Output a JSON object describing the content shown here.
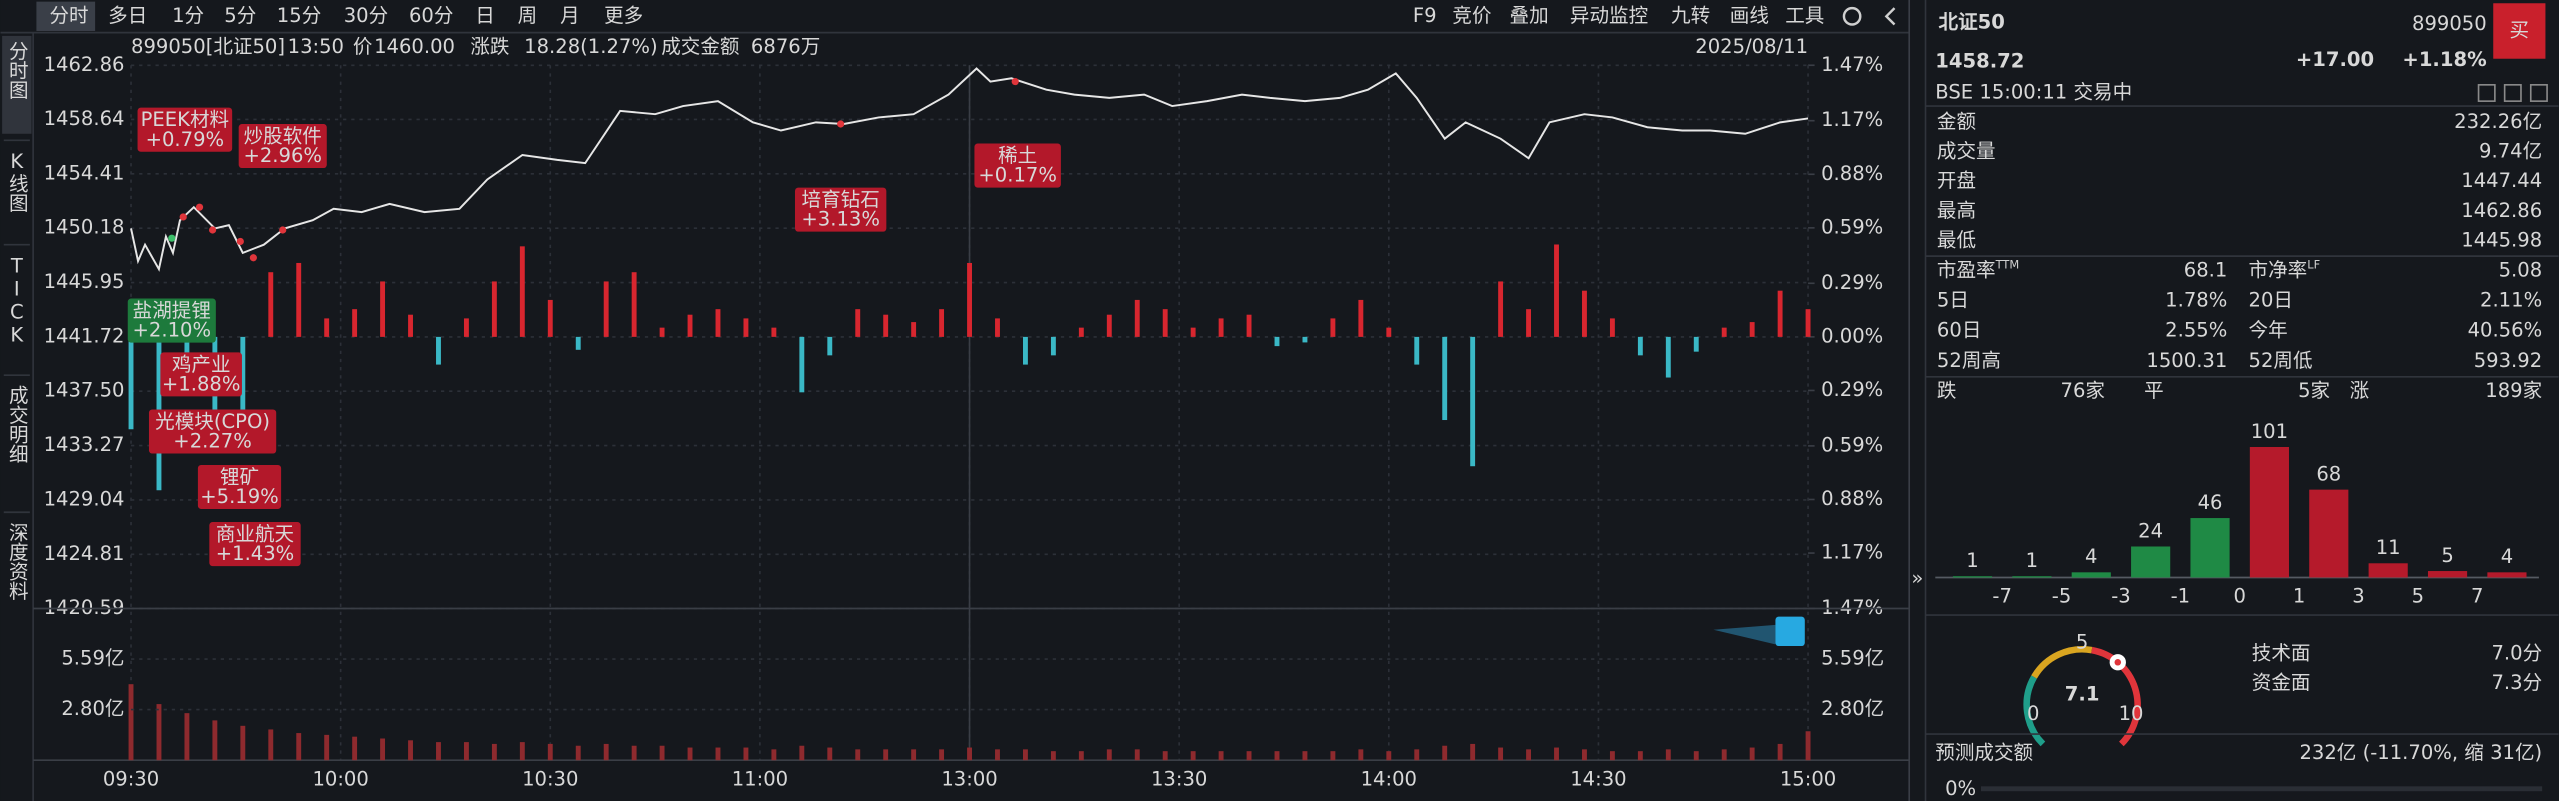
{
  "toolbar": {
    "periods": [
      "分时",
      "多日",
      "1分",
      "5分",
      "15分",
      "30分",
      "60分",
      "日",
      "周",
      "月",
      "更多"
    ],
    "tools": [
      "F9",
      "竞价",
      "叠加",
      "异动监控",
      "九转",
      "画线",
      "工具"
    ]
  },
  "side_tabs": [
    "分时图",
    "K线图",
    "TICK",
    "成交明细",
    "深度资料"
  ],
  "info_bar": {
    "code": "899050[北证50]",
    "time": "13:50",
    "price_label": "价",
    "price": "1460.00",
    "change_label": "涨跌",
    "change": "18.28(1.27%)",
    "amount_label": "成交金额",
    "amount": "6876万",
    "date": "2025/08/11"
  },
  "annotations": [
    {
      "name": "PEEK材料",
      "change": "+0.79%",
      "color": "#b3182a"
    },
    {
      "name": "炒股软件",
      "change": "+2.96%",
      "color": "#b3182a"
    },
    {
      "name": "盐湖提锂",
      "change": "+2.10%",
      "color": "#1d7a3c"
    },
    {
      "name": "鸡产业",
      "change": "+1.88%",
      "color": "#b3182a"
    },
    {
      "name": "光模块(CPO)",
      "change": "+2.27%",
      "color": "#b3182a"
    },
    {
      "name": "锂矿",
      "change": "+5.19%",
      "color": "#b3182a"
    },
    {
      "name": "商业航天",
      "change": "+1.43%",
      "color": "#b3182a"
    },
    {
      "name": "培育钻石",
      "change": "+3.13%",
      "color": "#b3182a"
    },
    {
      "name": "稀土",
      "change": "+0.17%",
      "color": "#b3182a"
    }
  ],
  "chart_data": [
    {
      "type": "line",
      "color": "#e6e6e6",
      "grid": true,
      "x": [
        0,
        1,
        2,
        4,
        5,
        6,
        7,
        9,
        12,
        14,
        16,
        19,
        22,
        26,
        29,
        33,
        37,
        42,
        47,
        51,
        56,
        61,
        65,
        70,
        75,
        79,
        84,
        89,
        93,
        98,
        102,
        107,
        112,
        117,
        121,
        123,
        126,
        131,
        135,
        140,
        145,
        149,
        154,
        159,
        163,
        168,
        173,
        177,
        181,
        184,
        188,
        191,
        196,
        200,
        203,
        208,
        212,
        217,
        222,
        226,
        231,
        236,
        240
      ],
      "values": [
        1450.17,
        1447.63,
        1448.9,
        1446.99,
        1449.53,
        1448.26,
        1450.8,
        1451.82,
        1450.17,
        1450.42,
        1448.26,
        1448.9,
        1450.17,
        1450.8,
        1451.69,
        1451.44,
        1452.07,
        1451.44,
        1451.69,
        1453.97,
        1455.88,
        1455.5,
        1455.24,
        1459.31,
        1459.05,
        1459.69,
        1460.07,
        1458.42,
        1457.78,
        1458.42,
        1458.29,
        1458.8,
        1459.05,
        1460.57,
        1462.61,
        1461.59,
        1461.84,
        1460.96,
        1460.57,
        1460.32,
        1460.57,
        1459.69,
        1460.07,
        1460.57,
        1460.32,
        1460.07,
        1460.32,
        1460.96,
        1462.23,
        1460.32,
        1457.15,
        1458.42,
        1457.15,
        1455.62,
        1458.42,
        1459.05,
        1458.8,
        1458.04,
        1457.78,
        1457.78,
        1457.53,
        1458.42,
        1458.72
      ],
      "xlim": [
        0,
        240
      ],
      "xticks": [
        {
          "value": 0,
          "label": "09:30"
        },
        {
          "value": 30,
          "label": "10:00"
        },
        {
          "value": 60,
          "label": "10:30"
        },
        {
          "value": 90,
          "label": "11:00"
        },
        {
          "value": 120,
          "label": "13:00"
        },
        {
          "value": 150,
          "label": "13:30"
        },
        {
          "value": 180,
          "label": "14:00"
        },
        {
          "value": 210,
          "label": "14:30"
        },
        {
          "value": 240,
          "label": "15:00"
        }
      ],
      "ylim": [
        1420.59,
        1462.86
      ],
      "yticks": [
        1462.86,
        1458.64,
        1454.41,
        1450.18,
        1445.95,
        1441.72,
        {
          "value": 1437.5,
          "label": "1437.50"
        },
        1433.27,
        1429.04,
        1424.81,
        1420.59
      ],
      "y2lim": [
        -1.47,
        1.47
      ],
      "y2ticks": [
        {
          "value": 1.47,
          "label": "1.47%"
        },
        {
          "value": 1.17,
          "label": "1.17%"
        },
        {
          "value": 0.88,
          "label": "0.88%"
        },
        {
          "value": 0.59,
          "label": "0.59%"
        },
        {
          "value": 0.29,
          "label": "0.29%"
        },
        {
          "value": 0,
          "label": "0.00%"
        },
        {
          "value": -0.29,
          "label": "0.29%"
        },
        {
          "value": -0.59,
          "label": "0.59%"
        },
        {
          "value": -0.88,
          "label": "0.88%"
        },
        {
          "value": -1.17,
          "label": "1.17%"
        },
        {
          "value": -1.47,
          "label": "1.47%"
        }
      ],
      "up_color": "#e0353b",
      "down_color": "#2fb85c",
      "flat_color": "#e6e6e6"
    },
    {
      "type": "bar",
      "color_up": "#d8262f",
      "color_down": "#3ab8c6",
      "x": [
        0,
        4,
        8,
        12,
        16,
        20,
        24,
        28,
        32,
        36,
        40,
        44,
        48,
        52,
        56,
        60,
        64,
        68,
        72,
        76,
        80,
        84,
        88,
        92,
        96,
        100,
        104,
        108,
        112,
        116,
        120,
        124,
        128,
        132,
        136,
        140,
        144,
        148,
        152,
        156,
        160,
        164,
        168,
        172,
        176,
        180,
        184,
        188,
        192,
        196,
        200,
        204,
        208,
        212,
        216,
        220,
        224,
        228,
        232,
        236,
        240
      ],
      "values": [
        -0.5,
        -0.83,
        -0.3,
        -0.55,
        -0.4,
        0.35,
        0.4,
        0.1,
        0.15,
        0.3,
        0.12,
        -0.15,
        0.1,
        0.3,
        0.49,
        0.2,
        -0.07,
        0.3,
        0.35,
        0.05,
        0.12,
        0.15,
        0.1,
        0.05,
        -0.3,
        -0.1,
        0.15,
        0.12,
        0.08,
        0.15,
        0.4,
        0.1,
        -0.15,
        -0.1,
        0.05,
        0.12,
        0.2,
        0.15,
        0.05,
        0.1,
        0.12,
        -0.05,
        -0.03,
        0.1,
        0.2,
        0.05,
        -0.15,
        -0.45,
        -0.7,
        0.3,
        0.15,
        0.5,
        0.25,
        0.1,
        -0.1,
        -0.22,
        -0.08,
        0.05,
        0.08,
        0.25,
        0.15
      ],
      "xlim": [
        0,
        240
      ],
      "ylim": [
        -1.47,
        1.47
      ]
    },
    {
      "type": "bar",
      "color": "#8e2a2e",
      "x": [
        0,
        4,
        8,
        12,
        16,
        20,
        24,
        28,
        32,
        36,
        40,
        44,
        48,
        52,
        56,
        60,
        64,
        68,
        72,
        76,
        80,
        84,
        88,
        92,
        96,
        100,
        104,
        108,
        112,
        116,
        120,
        124,
        128,
        132,
        136,
        140,
        144,
        148,
        152,
        156,
        160,
        164,
        168,
        172,
        176,
        180,
        184,
        188,
        192,
        196,
        200,
        204,
        208,
        212,
        216,
        220,
        224,
        228,
        232,
        236,
        240
      ],
      "values": [
        4.2,
        3.1,
        2.6,
        2.2,
        1.9,
        1.7,
        1.5,
        1.4,
        1.3,
        1.2,
        1.1,
        1.0,
        1.0,
        0.9,
        1.0,
        0.9,
        0.8,
        0.9,
        0.8,
        0.8,
        0.7,
        0.7,
        0.7,
        0.6,
        0.8,
        0.7,
        0.6,
        0.6,
        0.6,
        0.6,
        0.7,
        0.6,
        0.6,
        0.5,
        0.5,
        0.6,
        0.6,
        0.5,
        0.5,
        0.5,
        0.5,
        0.5,
        0.5,
        0.5,
        0.6,
        0.5,
        0.6,
        0.8,
        0.9,
        0.7,
        0.6,
        0.7,
        0.6,
        0.5,
        0.5,
        0.6,
        0.5,
        0.6,
        0.7,
        0.9,
        1.6
      ],
      "xlim": [
        0,
        240
      ],
      "ylim": [
        0,
        8.38
      ],
      "yticks": [
        {
          "value": 5.59,
          "label": "5.59亿"
        },
        {
          "value": 2.8,
          "label": "2.80亿"
        }
      ]
    },
    {
      "type": "histogram",
      "bins": [
        null,
        -7,
        -5,
        -3,
        -1,
        0,
        1,
        3,
        5,
        7,
        null
      ],
      "values": [
        1,
        1,
        4,
        24,
        46,
        101,
        68,
        11,
        5,
        4
      ],
      "colors": [
        "#1f8a45",
        "#1f8a45",
        "#1f8a45",
        "#1f8a45",
        "#1f8a45",
        "#b51a2b",
        "#b51a2b",
        "#b51a2b",
        "#b51a2b",
        "#b51a2b"
      ],
      "label_colors": [
        "#3cc06a",
        "#3cc06a",
        "#3cc06a",
        "#3cc06a",
        "#3cc06a",
        "#e0353b",
        "#e0353b",
        "#e0353b",
        "#e0353b",
        "#e0353b"
      ]
    }
  ],
  "quote": {
    "name": "北证50",
    "code": "899050",
    "price": "1458.72",
    "change": "+17.00",
    "change_pct": "+1.18%",
    "status": "BSE 15:00:11 交易中",
    "buy": "买"
  },
  "stats": [
    {
      "label": "金额",
      "value": "232.26亿"
    },
    {
      "label": "成交量",
      "value": "9.74亿"
    },
    {
      "label": "开盘",
      "value": "1447.44"
    },
    {
      "label": "最高",
      "value": "1462.86"
    },
    {
      "label": "最低",
      "value": "1445.98"
    }
  ],
  "pairs": [
    [
      {
        "label": "市盈率",
        "sup": "TTM",
        "value": "68.1"
      },
      {
        "label": "市净率",
        "sup": "LF",
        "value": "5.08"
      }
    ],
    [
      {
        "label": "5日",
        "value": "1.78%"
      },
      {
        "label": "20日",
        "value": "2.11%"
      }
    ],
    [
      {
        "label": "60日",
        "value": "2.55%"
      },
      {
        "label": "今年",
        "value": "40.56%"
      }
    ],
    [
      {
        "label": "52周高",
        "value": "1500.31"
      },
      {
        "label": "52周低",
        "value": "593.92"
      }
    ]
  ],
  "breadth": {
    "down_label": "跌",
    "down": "76家",
    "flat_label": "平",
    "flat": "5家",
    "up_label": "涨",
    "up": "189家"
  },
  "score": {
    "value": "7.1",
    "scale": [
      "0",
      "5",
      "10"
    ],
    "rows": [
      {
        "label": "技术面",
        "value": "7.0分"
      },
      {
        "label": "资金面",
        "value": "7.3分"
      }
    ]
  },
  "forecast": {
    "label": "预测成交额",
    "value": "232亿 (-11.70%, 缩 31亿)",
    "progress": "0%"
  }
}
